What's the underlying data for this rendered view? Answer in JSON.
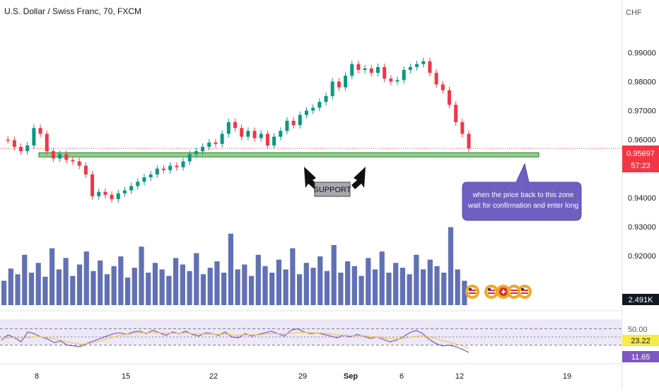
{
  "header": {
    "title": "U.S. Dollar / Swiss Franc, 70, FXCM",
    "currency": "CHF"
  },
  "colors": {
    "up": "#089981",
    "down": "#f23645",
    "volume": "#3b4ea0",
    "rsi_line": "#7e57c2",
    "rsi_ma": "#f7c948",
    "support_zone": "#90d18a",
    "callout": "#6f5fc1",
    "price_tag": "#f23645"
  },
  "annotations": {
    "support_label": "SUPPORT",
    "callout_text_line1": "when the price back to this zone",
    "callout_text_line2": "wait for confirmation and enter long"
  },
  "price_scale": {
    "current_price": "0.95697",
    "countdown": "57:23",
    "volume_label": "2.491K",
    "rsi_level": "50.00",
    "rsi_ma_value": "23.22",
    "rsi_value": "11.65"
  },
  "chart_data": [
    {
      "type": "line",
      "title": "U.S. Dollar / Swiss Franc, 70, FXCM",
      "y_unit": "CHF",
      "x_tick_labels": [
        "8",
        "15",
        "22",
        "29",
        "Sep",
        "6",
        "12",
        "19"
      ],
      "y_tick_labels": [
        "0.99000",
        "0.98000",
        "0.97000",
        "0.96000",
        "0.95000",
        "0.94000",
        "0.93000",
        "0.92000"
      ],
      "ylim": [
        0.912,
        0.993
      ],
      "support_zone": [
        0.9545,
        0.9555
      ],
      "last_price": 0.95697,
      "series": [
        {
          "values": [
            0.96,
            0.9598,
            0.9575,
            0.956,
            0.958,
            0.964,
            0.962,
            0.956,
            0.9535,
            0.955,
            0.953,
            0.9525,
            0.951,
            0.948,
            0.9405,
            0.942,
            0.941,
            0.9395,
            0.9415,
            0.9425,
            0.944,
            0.9455,
            0.947,
            0.948,
            0.95,
            0.9495,
            0.951,
            0.9505,
            0.9525,
            0.955,
            0.956,
            0.9575,
            0.959,
            0.9585,
            0.962,
            0.966,
            0.964,
            0.961,
            0.963,
            0.9605,
            0.962,
            0.958,
            0.961,
            0.963,
            0.9665,
            0.965,
            0.9685,
            0.97,
            0.971,
            0.973,
            0.975,
            0.98,
            0.978,
            0.982,
            0.986,
            0.984,
            0.9845,
            0.983,
            0.985,
            0.981,
            0.98,
            0.9805,
            0.984,
            0.985,
            0.986,
            0.987,
            0.983,
            0.979,
            0.977,
            0.972,
            0.966,
            0.962,
            0.957
          ]
        }
      ]
    },
    {
      "type": "bar",
      "title": "Volume",
      "value_label": "2.491K",
      "values": [
        0.3,
        0.45,
        0.38,
        0.62,
        0.4,
        0.52,
        0.35,
        0.7,
        0.44,
        0.58,
        0.36,
        0.5,
        0.66,
        0.42,
        0.55,
        0.38,
        0.48,
        0.6,
        0.34,
        0.46,
        0.72,
        0.4,
        0.52,
        0.44,
        0.36,
        0.58,
        0.5,
        0.42,
        0.64,
        0.38,
        0.46,
        0.54,
        0.4,
        0.88,
        0.44,
        0.5,
        0.36,
        0.62,
        0.48,
        0.4,
        0.56,
        0.44,
        0.7,
        0.38,
        0.52,
        0.46,
        0.6,
        0.42,
        0.74,
        0.4,
        0.54,
        0.48,
        0.36,
        0.58,
        0.44,
        0.66,
        0.4,
        0.52,
        0.46,
        0.38,
        0.62,
        0.44,
        0.56,
        0.48,
        0.4,
        0.96,
        0.44,
        0.3
      ]
    },
    {
      "type": "line",
      "title": "RSI",
      "ylim": [
        0,
        100
      ],
      "levels": [
        30,
        50,
        70
      ],
      "level_label": "50.00",
      "series": [
        {
          "name": "RSI",
          "value_label": "11.65",
          "values": [
            42,
            55,
            48,
            38,
            62,
            58,
            50,
            45,
            36,
            40,
            30,
            28,
            26,
            34,
            40,
            46,
            52,
            58,
            60,
            56,
            62,
            64,
            58,
            66,
            60,
            54,
            62,
            58,
            64,
            56,
            52,
            60,
            58,
            54,
            62,
            50,
            48,
            58,
            52,
            56,
            60,
            64,
            58,
            52,
            66,
            70,
            62,
            58,
            60,
            56,
            52,
            48,
            54,
            50,
            56,
            52,
            46,
            50,
            44,
            38,
            42,
            50,
            60,
            66,
            58,
            44,
            34,
            28,
            30,
            26,
            20,
            12
          ]
        },
        {
          "name": "RSI-based MA",
          "value_label": "23.22",
          "values": [
            46,
            48,
            49,
            47,
            48,
            50,
            50,
            48,
            45,
            42,
            38,
            35,
            32,
            33,
            36,
            40,
            45,
            50,
            54,
            56,
            58,
            60,
            60,
            60,
            60,
            59,
            59,
            59,
            60,
            58,
            57,
            57,
            57,
            56,
            57,
            55,
            54,
            55,
            55,
            55,
            57,
            58,
            58,
            57,
            59,
            61,
            61,
            60,
            60,
            59,
            57,
            55,
            54,
            53,
            53,
            53,
            51,
            50,
            48,
            46,
            45,
            46,
            49,
            52,
            53,
            50,
            46,
            41,
            37,
            33,
            28,
            23
          ]
        }
      ]
    }
  ]
}
